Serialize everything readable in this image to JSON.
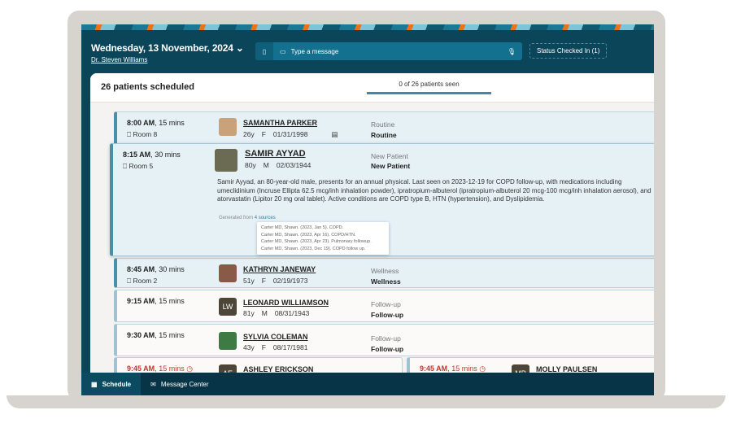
{
  "header": {
    "date": "Wednesday, 13 November, 2024",
    "doctor": "Dr. Steven Williams",
    "message_placeholder": "Type a message",
    "status": "Status  Checked In  (1)"
  },
  "panel": {
    "scheduled": "26 patients scheduled",
    "seen": "0 of 26 patients seen"
  },
  "appointments": [
    {
      "time": "8:00 AM",
      "duration": ", 15 mins",
      "room": "Room 8",
      "name": "SAMANTHA PARKER",
      "age": "26y",
      "sex": "F",
      "dob": "01/31/1998",
      "type": "Routine",
      "type_bold": "Routine"
    },
    {
      "time": "8:15 AM",
      "duration": ", 30 mins",
      "room": "Room 5",
      "name": "SAMIR AYYAD",
      "age": "80y",
      "sex": "M",
      "dob": "02/03/1944",
      "type": "New Patient",
      "type_bold": "New Patient",
      "summary": "Samir Ayyad, an 80-year-old male, presents for an annual physical. Last seen on 2023-12-19 for COPD follow-up, with medications including umeclidinium (Incruse Ellipta 62.5 mcg/inh inhalation powder), ipratropium-albuterol (ipratropium-albuterol 20 mcg-100 mcg/inh inhalation aerosol), and atorvastatin (Lipitor 20 mg oral tablet). Active conditions are COPD type B, HTN (hypertension), and Dyslipidemia.",
      "generated": "Generated from",
      "sources_link": "4 sources",
      "sources": [
        "Carter MD, Shawn. (2023, Jan 5). COPD.",
        "Carter MD, Shawn. (2023, Apr 16). COPD/HTN.",
        "Carter MD, Shawn. (2023, Apr 23). Pulmonary followup.",
        "Carter MD, Shawn. (2023, Dec 19). COPD follow up."
      ]
    },
    {
      "time": "8:45 AM",
      "duration": ", 30 mins",
      "room": "Room 2",
      "name": "KATHRYN JANEWAY",
      "age": "51y",
      "sex": "F",
      "dob": "02/19/1973",
      "type": "Wellness",
      "type_bold": "Wellness"
    },
    {
      "time": "9:15 AM",
      "duration": ", 15 mins",
      "initials": "LW",
      "name": "LEONARD WILLIAMSON",
      "age": "81y",
      "sex": "M",
      "dob": "08/31/1943",
      "type": "Follow-up",
      "type_bold": "Follow-up"
    },
    {
      "time": "9:30 AM",
      "duration": ", 15 mins",
      "name": "SYLVIA COLEMAN",
      "age": "43y",
      "sex": "F",
      "dob": "08/17/1981",
      "type": "Follow-up",
      "type_bold": "Follow-up"
    },
    {
      "time": "9:45 AM",
      "duration": ", 15 mins",
      "initials": "AE",
      "name": "ASHLEY ERICKSON"
    },
    {
      "time": "9:45 AM",
      "duration": ", 15 mins",
      "initials": "MP",
      "name": "MOLLY PAULSEN"
    }
  ],
  "nav": {
    "schedule": "Schedule",
    "messages": "Message Center"
  },
  "colors": {
    "header": "#0a4559",
    "accent": "#3f8aa8",
    "late": "#c4362a"
  }
}
